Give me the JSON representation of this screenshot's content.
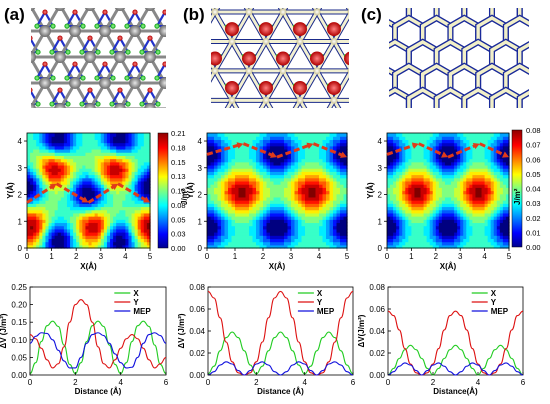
{
  "panels": [
    {
      "label": "(a)",
      "structure": "hex-lattice-red-green-gray-atoms"
    },
    {
      "label": "(b)",
      "structure": "hex-lattice-red-green-white-atoms"
    },
    {
      "label": "(c)",
      "structure": "honeycomb-white-atoms"
    }
  ],
  "colors": {
    "X": "#22cc22",
    "Y": "#dd1111",
    "MEP": "#1111dd",
    "path_arrow": "#e03a1a"
  },
  "chart_data": [
    {
      "type": "heatmap",
      "panel": "a",
      "xlabel": "X(Å)",
      "ylabel": "Y(Å)",
      "colorbar_label": "J/m²",
      "xlim": [
        0,
        5
      ],
      "ylim": [
        0,
        4.3
      ],
      "xticks": [
        "0",
        "1",
        "2",
        "3",
        "4",
        "5"
      ],
      "yticks": [
        "0",
        "1",
        "2",
        "3",
        "4"
      ],
      "colorbar_ticks": [
        "0.00",
        "0.03",
        "0.05",
        "0.08",
        "0.10",
        "0.13",
        "0.15",
        "0.18",
        "0.21"
      ],
      "zlim": [
        0,
        0.21
      ],
      "maxima": [
        [
          0.2,
          0.8
        ],
        [
          2.7,
          0.8
        ],
        [
          5.0,
          0.8
        ],
        [
          1.1,
          3.0
        ],
        [
          3.6,
          3.0
        ]
      ],
      "minima": [
        [
          1.25,
          4.0
        ],
        [
          3.75,
          4.0
        ],
        [
          0.0,
          2.3
        ],
        [
          2.5,
          2.0
        ],
        [
          5.0,
          2.3
        ],
        [
          1.25,
          0.3
        ],
        [
          3.75,
          0.3
        ]
      ],
      "path": [
        [
          0.0,
          1.7
        ],
        [
          1.2,
          2.4
        ],
        [
          2.5,
          1.7
        ],
        [
          3.7,
          2.4
        ],
        [
          5.0,
          1.7
        ]
      ]
    },
    {
      "type": "heatmap",
      "panel": "b",
      "xlabel": "X(Å)",
      "ylabel": "Y(Å)",
      "xlim": [
        0,
        5
      ],
      "ylim": [
        0,
        4.3
      ],
      "xticks": [
        "0",
        "1",
        "2",
        "3",
        "4",
        "5"
      ],
      "yticks": [
        "0",
        "1",
        "2",
        "3",
        "4"
      ],
      "zlim": [
        0,
        0.08
      ],
      "maxima": [
        [
          1.25,
          2.1
        ],
        [
          3.75,
          2.1
        ]
      ],
      "minima": [
        [
          0,
          0.8
        ],
        [
          2.5,
          0.8
        ],
        [
          5,
          0.8
        ],
        [
          0,
          3.5
        ],
        [
          2.5,
          3.5
        ],
        [
          5,
          3.5
        ]
      ],
      "path": [
        [
          0.0,
          3.5
        ],
        [
          1.3,
          3.9
        ],
        [
          2.5,
          3.4
        ],
        [
          3.8,
          3.9
        ],
        [
          5.0,
          3.4
        ]
      ]
    },
    {
      "type": "heatmap",
      "panel": "c",
      "xlabel": "X(Å)",
      "ylabel": "Y(Å)",
      "colorbar_label": "J/m²",
      "xlim": [
        0,
        5
      ],
      "ylim": [
        0,
        4.3
      ],
      "xticks": [
        "0",
        "1",
        "2",
        "3",
        "4",
        "5"
      ],
      "yticks": [
        "0",
        "1",
        "2",
        "3",
        "4"
      ],
      "colorbar_ticks": [
        "0.00",
        "0.01",
        "0.02",
        "0.03",
        "0.04",
        "0.05",
        "0.06",
        "0.07",
        "0.08"
      ],
      "zlim": [
        0,
        0.08
      ],
      "maxima": [
        [
          1.25,
          2.1
        ],
        [
          3.75,
          2.1
        ]
      ],
      "minima": [
        [
          0,
          0.8
        ],
        [
          2.5,
          0.8
        ],
        [
          5,
          0.8
        ],
        [
          0,
          3.5
        ],
        [
          2.5,
          3.5
        ],
        [
          5,
          3.5
        ]
      ],
      "path": [
        [
          0.0,
          3.5
        ],
        [
          1.3,
          3.9
        ],
        [
          2.5,
          3.4
        ],
        [
          3.8,
          3.9
        ],
        [
          5.0,
          3.4
        ]
      ]
    },
    {
      "type": "line",
      "panel": "a",
      "xlabel": "Distance (Å)",
      "ylabel": "ΔV (J/m²)",
      "xlim": [
        0,
        6
      ],
      "ylim": [
        0,
        0.25
      ],
      "xticks": [
        0,
        2,
        4,
        6
      ],
      "yticks": [
        0.0,
        0.05,
        0.1,
        0.15,
        0.2,
        0.25
      ],
      "legend": "top-right",
      "series": [
        {
          "name": "X",
          "x": [
            0,
            0.25,
            0.5,
            0.75,
            1,
            1.25,
            1.5,
            1.75,
            2,
            2.25,
            2.5,
            2.75,
            3,
            3.25,
            3.5,
            3.75,
            4,
            4.25,
            4.5,
            4.75,
            5,
            5.25,
            5.5,
            5.75,
            6
          ],
          "y": [
            0.004,
            0.035,
            0.095,
            0.14,
            0.153,
            0.138,
            0.085,
            0.03,
            0.004,
            0.035,
            0.095,
            0.14,
            0.153,
            0.138,
            0.085,
            0.03,
            0.004,
            0.035,
            0.095,
            0.14,
            0.153,
            0.138,
            0.085,
            0.03,
            0.004
          ]
        },
        {
          "name": "Y",
          "x": [
            0,
            0.25,
            0.5,
            0.75,
            1,
            1.25,
            1.5,
            1.75,
            2,
            2.25,
            2.5,
            2.75,
            3,
            3.25,
            3.5,
            3.75,
            4,
            4.25,
            4.5,
            4.75,
            5,
            5.25,
            5.5,
            5.75,
            6
          ],
          "y": [
            0.115,
            0.103,
            0.076,
            0.043,
            0.02,
            0.032,
            0.08,
            0.15,
            0.2,
            0.214,
            0.2,
            0.15,
            0.08,
            0.032,
            0.02,
            0.043,
            0.076,
            0.103,
            0.115,
            0.103,
            0.076,
            0.043,
            0.02,
            0.032,
            0.05
          ]
        },
        {
          "name": "MEP",
          "x": [
            0,
            0.25,
            0.5,
            0.75,
            1,
            1.25,
            1.5,
            1.75,
            2,
            2.25,
            2.5,
            2.75,
            3,
            3.25,
            3.5,
            3.75,
            4,
            4.25,
            4.5,
            4.75,
            5,
            5.25,
            5.5,
            5.75,
            6
          ],
          "y": [
            0.09,
            0.11,
            0.12,
            0.118,
            0.1,
            0.07,
            0.04,
            0.02,
            0.02,
            0.05,
            0.09,
            0.115,
            0.12,
            0.112,
            0.09,
            0.06,
            0.035,
            0.02,
            0.022,
            0.05,
            0.09,
            0.115,
            0.12,
            0.112,
            0.09
          ]
        }
      ]
    },
    {
      "type": "line",
      "panel": "b",
      "xlabel": "Distance (Å)",
      "ylabel": "ΔV (J/m²)",
      "xlim": [
        0,
        6
      ],
      "ylim": [
        0,
        0.08
      ],
      "xticks": [
        0,
        2,
        4,
        6
      ],
      "yticks": [
        0.0,
        0.02,
        0.04,
        0.06,
        0.08
      ],
      "legend": "top-right",
      "series": [
        {
          "name": "X",
          "x": [
            0,
            0.25,
            0.5,
            0.75,
            1,
            1.25,
            1.5,
            1.75,
            2,
            2.25,
            2.5,
            2.75,
            3,
            3.25,
            3.5,
            3.75,
            4,
            4.25,
            4.5,
            4.75,
            5,
            5.25,
            5.5,
            5.75,
            6
          ],
          "y": [
            0.001,
            0.008,
            0.022,
            0.034,
            0.039,
            0.034,
            0.022,
            0.009,
            0.001,
            0.008,
            0.022,
            0.034,
            0.039,
            0.034,
            0.022,
            0.009,
            0.001,
            0.008,
            0.022,
            0.034,
            0.039,
            0.034,
            0.022,
            0.009,
            0.001
          ]
        },
        {
          "name": "Y",
          "x": [
            0,
            0.25,
            0.5,
            0.75,
            1,
            1.25,
            1.5,
            1.75,
            2,
            2.25,
            2.5,
            2.75,
            3,
            3.25,
            3.5,
            3.75,
            4,
            4.25,
            4.5,
            4.75,
            5,
            5.25,
            5.5,
            5.75,
            6
          ],
          "y": [
            0.076,
            0.07,
            0.052,
            0.03,
            0.012,
            0.002,
            0.0,
            0.002,
            0.012,
            0.03,
            0.052,
            0.07,
            0.076,
            0.07,
            0.052,
            0.03,
            0.012,
            0.002,
            0.0,
            0.002,
            0.012,
            0.03,
            0.052,
            0.07,
            0.076
          ]
        },
        {
          "name": "MEP",
          "x": [
            0,
            0.25,
            0.5,
            0.75,
            1,
            1.25,
            1.5,
            1.75,
            2,
            2.25,
            2.5,
            2.75,
            3,
            3.25,
            3.5,
            3.75,
            4,
            4.25,
            4.5,
            4.75,
            5,
            5.25,
            5.5,
            5.75,
            6
          ],
          "y": [
            0.0,
            0.003,
            0.009,
            0.012,
            0.01,
            0.004,
            0.0,
            0.004,
            0.01,
            0.012,
            0.009,
            0.003,
            0.0,
            0.003,
            0.009,
            0.012,
            0.01,
            0.004,
            0.0,
            0.004,
            0.01,
            0.012,
            0.009,
            0.003,
            0.0
          ]
        }
      ]
    },
    {
      "type": "line",
      "panel": "c",
      "xlabel": "Distance(Å)",
      "ylabel": "ΔV(J/m²)",
      "xlim": [
        0,
        6
      ],
      "ylim": [
        0,
        0.08
      ],
      "xticks": [
        0,
        2,
        4,
        6
      ],
      "yticks": [
        0.0,
        0.02,
        0.04,
        0.06,
        0.08
      ],
      "legend": "top-right",
      "series": [
        {
          "name": "X",
          "x": [
            0,
            0.25,
            0.5,
            0.75,
            1,
            1.25,
            1.5,
            1.75,
            2,
            2.25,
            2.5,
            2.75,
            3,
            3.25,
            3.5,
            3.75,
            4,
            4.25,
            4.5,
            4.75,
            5,
            5.25,
            5.5,
            5.75,
            6
          ],
          "y": [
            0.0,
            0.006,
            0.015,
            0.023,
            0.027,
            0.023,
            0.015,
            0.006,
            0.0,
            0.006,
            0.015,
            0.023,
            0.027,
            0.023,
            0.015,
            0.006,
            0.0,
            0.006,
            0.015,
            0.023,
            0.027,
            0.023,
            0.015,
            0.006,
            0.0
          ]
        },
        {
          "name": "Y",
          "x": [
            0,
            0.25,
            0.5,
            0.75,
            1,
            1.25,
            1.5,
            1.75,
            2,
            2.25,
            2.5,
            2.75,
            3,
            3.25,
            3.5,
            3.75,
            4,
            4.25,
            4.5,
            4.75,
            5,
            5.25,
            5.5,
            5.75,
            6
          ],
          "y": [
            0.058,
            0.054,
            0.041,
            0.024,
            0.01,
            0.002,
            0.0,
            0.002,
            0.01,
            0.024,
            0.041,
            0.054,
            0.058,
            0.054,
            0.041,
            0.024,
            0.01,
            0.002,
            0.0,
            0.002,
            0.01,
            0.024,
            0.041,
            0.054,
            0.058
          ]
        },
        {
          "name": "MEP",
          "x": [
            0,
            0.25,
            0.5,
            0.75,
            1,
            1.25,
            1.5,
            1.75,
            2,
            2.25,
            2.5,
            2.75,
            3,
            3.25,
            3.5,
            3.75,
            4,
            4.25,
            4.5,
            4.75,
            5,
            5.25,
            5.5,
            5.75,
            6
          ],
          "y": [
            0.0,
            0.003,
            0.008,
            0.011,
            0.009,
            0.004,
            0.0,
            0.004,
            0.009,
            0.011,
            0.008,
            0.003,
            0.0,
            0.003,
            0.008,
            0.011,
            0.009,
            0.004,
            0.0,
            0.004,
            0.009,
            0.011,
            0.008,
            0.003,
            0.0
          ]
        }
      ]
    }
  ]
}
